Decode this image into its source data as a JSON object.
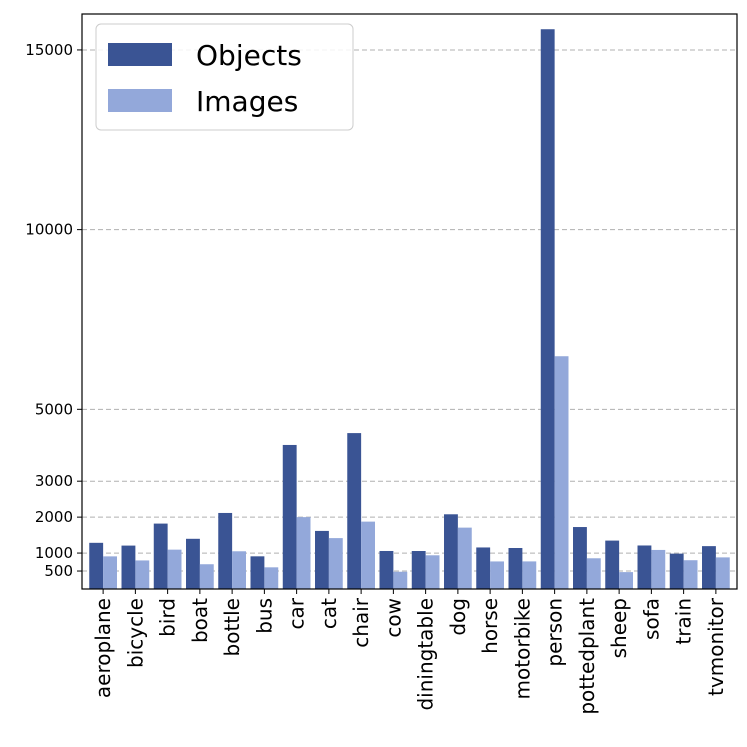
{
  "colors": {
    "objects": "#3a5494",
    "images": "#93a8da"
  },
  "chart_data": {
    "type": "bar",
    "categories": [
      "aeroplane",
      "bicycle",
      "bird",
      "boat",
      "bottle",
      "bus",
      "car",
      "cat",
      "chair",
      "cow",
      "diningtable",
      "dog",
      "horse",
      "motorbike",
      "person",
      "pottedplant",
      "sheep",
      "sofa",
      "train",
      "tvmonitor"
    ],
    "series": [
      {
        "name": "Objects",
        "values": [
          1285,
          1208,
          1820,
          1397,
          2116,
          909,
          4008,
          1616,
          4338,
          1058,
          1057,
          2079,
          1156,
          1141,
          15576,
          1724,
          1347,
          1211,
          984,
          1193
        ]
      },
      {
        "name": "Images",
        "values": [
          908,
          795,
          1095,
          689,
          1050,
          603,
          2000,
          1416,
          1875,
          480,
          938,
          1708,
          767,
          768,
          6477,
          855,
          470,
          1087,
          801,
          880
        ]
      }
    ],
    "yticks": [
      500,
      1000,
      2000,
      3000,
      5000,
      10000,
      15000
    ],
    "ylim": [
      0,
      16000
    ],
    "grid": true,
    "legend": "top-left"
  }
}
